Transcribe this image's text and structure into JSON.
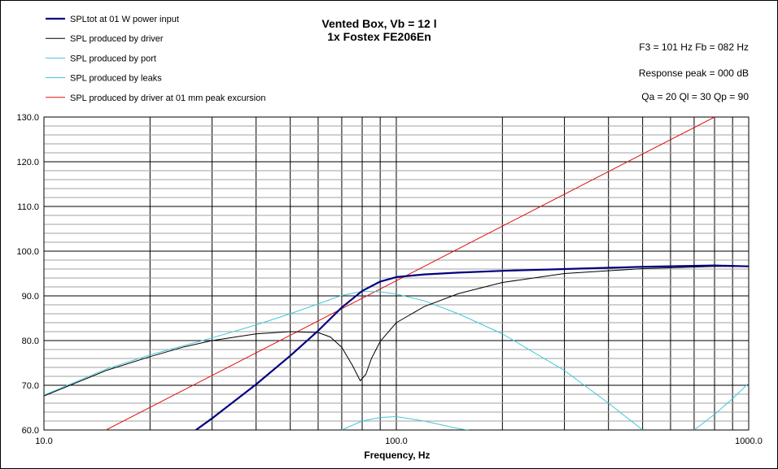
{
  "chart_data": {
    "type": "line",
    "title": "Vented Box, Vb = 12 l",
    "subtitle": "1x Fostex FE206En",
    "xlabel": "Frequency, Hz",
    "ylabel": "",
    "xscale": "log",
    "xlim": [
      10,
      1000
    ],
    "ylim": [
      60,
      130
    ],
    "x_tick_labels": [
      "10.0",
      "100.0",
      "1000.0"
    ],
    "y_tick_labels": [
      "60.0",
      "70.0",
      "80.0",
      "90.0",
      "100.0",
      "110.0",
      "120.0",
      "130.0"
    ],
    "grid": true,
    "legend_position": "top-left",
    "annotations": [
      "F3 = 101 Hz  Fb = 082 Hz",
      "Response  peak = 000 dB",
      "Qa = 20  Ql = 30  Qp = 90"
    ],
    "series": [
      {
        "name": "SPLtot at 01 W power input",
        "color": "#000080",
        "width": 2.2,
        "points": [
          [
            27,
            60
          ],
          [
            30,
            62.6
          ],
          [
            40,
            70.2
          ],
          [
            50,
            76.6
          ],
          [
            60,
            82.2
          ],
          [
            70,
            87.4
          ],
          [
            80,
            91.1
          ],
          [
            90,
            93.2
          ],
          [
            100,
            94.2
          ],
          [
            120,
            94.8
          ],
          [
            150,
            95.2
          ],
          [
            200,
            95.6
          ],
          [
            300,
            96.0
          ],
          [
            500,
            96.5
          ],
          [
            800,
            96.8
          ],
          [
            1000,
            96.6
          ]
        ]
      },
      {
        "name": "SPL produced by driver",
        "color": "#000000",
        "width": 1,
        "points": [
          [
            10,
            67.6
          ],
          [
            15,
            73.3
          ],
          [
            20,
            76.4
          ],
          [
            25,
            78.6
          ],
          [
            30,
            80.0
          ],
          [
            40,
            81.5
          ],
          [
            50,
            82.0
          ],
          [
            60,
            81.8
          ],
          [
            65,
            80.8
          ],
          [
            70,
            78.5
          ],
          [
            75,
            74.5
          ],
          [
            79,
            71.0
          ],
          [
            82,
            72.5
          ],
          [
            85,
            76.0
          ],
          [
            90,
            79.8
          ],
          [
            100,
            84.0
          ],
          [
            120,
            87.6
          ],
          [
            150,
            90.5
          ],
          [
            200,
            93.0
          ],
          [
            300,
            95.0
          ],
          [
            500,
            96.1
          ],
          [
            800,
            96.6
          ],
          [
            1000,
            96.6
          ]
        ]
      },
      {
        "name": "SPL produced by port",
        "color": "#40C8D8",
        "width": 1,
        "points": [
          [
            10,
            67.8
          ],
          [
            15,
            73.6
          ],
          [
            20,
            76.8
          ],
          [
            30,
            80.6
          ],
          [
            40,
            83.5
          ],
          [
            50,
            86.0
          ],
          [
            60,
            88.2
          ],
          [
            70,
            90.1
          ],
          [
            80,
            91.0
          ],
          [
            90,
            90.9
          ],
          [
            100,
            90.4
          ],
          [
            120,
            88.9
          ],
          [
            150,
            86.0
          ],
          [
            200,
            81.5
          ],
          [
            300,
            73.3
          ],
          [
            400,
            66.0
          ],
          [
            500,
            60.0
          ]
        ]
      },
      {
        "name": "SPL produced by leaks",
        "color": "#40C8D8",
        "width": 1,
        "points": [
          [
            70,
            60.0
          ],
          [
            80,
            62.0
          ],
          [
            90,
            62.8
          ],
          [
            100,
            63.0
          ],
          [
            120,
            62.0
          ],
          [
            150,
            60.3
          ],
          [
            160,
            60.0
          ]
        ]
      },
      {
        "name": "SPL produced by driver at 01 mm peak excursion",
        "color": "#E01010",
        "width": 1,
        "points": [
          [
            15,
            60
          ],
          [
            800,
            130
          ]
        ]
      },
      {
        "name": "",
        "color": "#40C8D8",
        "width": 1,
        "points": [
          [
            700,
            60.0
          ],
          [
            800,
            63.5
          ],
          [
            900,
            67.0
          ],
          [
            1000,
            70.5
          ]
        ]
      }
    ]
  }
}
